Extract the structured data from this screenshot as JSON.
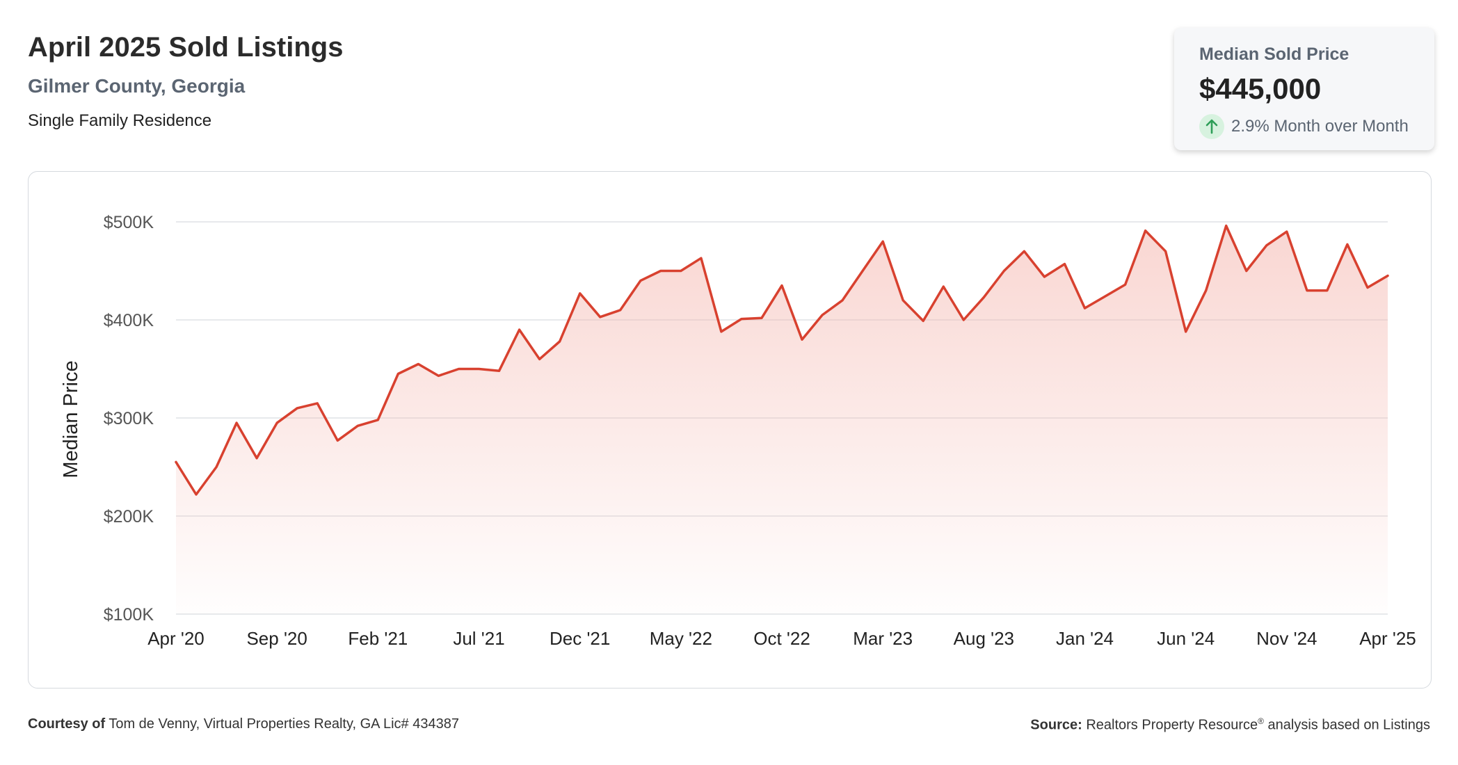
{
  "header": {
    "title": "April 2025 Sold Listings",
    "location": "Gilmer County, Georgia",
    "property_type": "Single Family Residence"
  },
  "kpi": {
    "label": "Median Sold Price",
    "value": "$445,000",
    "change": "2.9% Month over Month",
    "change_color": "#2e9e58",
    "icon": "arrow-up-icon"
  },
  "footer": {
    "courtesy_label": "Courtesy of",
    "courtesy_text": "Tom de Venny, Virtual Properties Realty, GA Lic# 434387",
    "source_label": "Source:",
    "source_text_pre": "Realtors Property Resource",
    "source_reg": "®",
    "source_text_post": " analysis based on Listings"
  },
  "chart_data": {
    "type": "area",
    "ylabel": "Median Price",
    "ylim": [
      100000,
      500000
    ],
    "yticks": [
      100000,
      200000,
      300000,
      400000,
      500000
    ],
    "ytick_labels": [
      "$100K",
      "$200K",
      "$300K",
      "$400K",
      "$500K"
    ],
    "xtick_labels": [
      "Apr '20",
      "Sep '20",
      "Feb '21",
      "Jul '21",
      "Dec '21",
      "May '22",
      "Oct '22",
      "Mar '23",
      "Aug '23",
      "Jan '24",
      "Jun '24",
      "Nov '24",
      "Apr '25"
    ],
    "grid": true,
    "line_color": "#d8412f",
    "fill_color": "#f4b5ad",
    "series": [
      {
        "values": [
          255000,
          222000,
          250000,
          295000,
          259000,
          295000,
          310000,
          315000,
          277000,
          292000,
          298000,
          345000,
          355000,
          343000,
          350000,
          350000,
          348000,
          390000,
          360000,
          378000,
          427000,
          403000,
          410000,
          440000,
          450000,
          450000,
          463000,
          388000,
          401000,
          402000,
          435000,
          380000,
          405000,
          420000,
          450000,
          480000,
          420000,
          399000,
          434000,
          400000,
          423000,
          450000,
          470000,
          444000,
          457000,
          412000,
          424000,
          436000,
          491000,
          470000,
          388000,
          430000,
          496000,
          450000,
          476000,
          490000,
          430000,
          430000,
          477000,
          433000,
          445000
        ]
      }
    ]
  }
}
